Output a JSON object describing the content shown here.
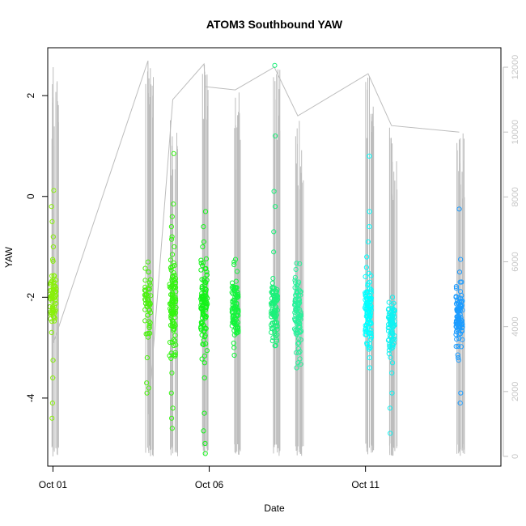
{
  "chart_data": {
    "type": "scatter",
    "title": "ATOM3 Southbound YAW",
    "xlabel": "Date",
    "ylabel": "YAW",
    "xlim": [
      "2023-09-30T20:00",
      "2023-10-15T08:00"
    ],
    "ylim": [
      -5.35,
      2.95
    ],
    "y2lim": [
      -300,
      12600
    ],
    "x_ticks": [
      {
        "value": "2023-10-01T00:00",
        "label": "Oct 01"
      },
      {
        "value": "2023-10-06T00:00",
        "label": "Oct 06"
      },
      {
        "value": "2023-10-11T00:00",
        "label": "Oct 11"
      }
    ],
    "y_ticks": [
      2,
      0,
      -2,
      -4
    ],
    "y2_ticks": [
      0,
      2000,
      4000,
      6000,
      8000,
      10000,
      12000
    ],
    "grid": false,
    "legend": "none",
    "colors": {
      "line": "#bdbdbd",
      "right_axis": "#bfbfbf"
    },
    "series": [
      {
        "time": "2023-10-01T00:00",
        "color": "#88f00a",
        "median": -2.0,
        "spread": 0.28,
        "n": 70,
        "outliers": [
          0.12,
          -0.2,
          -0.5,
          -0.8,
          -1.0,
          -1.25,
          -2.7,
          -3.25,
          -3.6,
          -4.1,
          -4.4
        ]
      },
      {
        "time": "2023-10-04T01:00",
        "color": "#4cf010",
        "median": -2.1,
        "spread": 0.3,
        "n": 50,
        "outliers": [
          -1.3,
          -1.5,
          -3.2,
          -3.7,
          -3.8,
          -3.9
        ]
      },
      {
        "time": "2023-10-04T20:00",
        "color": "#34f410",
        "median": -2.2,
        "spread": 0.45,
        "n": 110,
        "outliers": [
          0.85,
          -0.15,
          -0.4,
          -0.6,
          -0.8,
          -1.0,
          -3.5,
          -3.9,
          -4.2,
          -4.4,
          -4.6
        ]
      },
      {
        "time": "2023-10-05T20:00",
        "color": "#14f218",
        "median": -2.2,
        "spread": 0.4,
        "n": 100,
        "outliers": [
          -0.3,
          -0.6,
          -0.9,
          -1.0,
          -3.3,
          -3.6,
          -4.3,
          -4.65,
          -4.9,
          -5.1
        ]
      },
      {
        "time": "2023-10-06T20:00",
        "color": "#14f43c",
        "median": -2.25,
        "spread": 0.3,
        "n": 90,
        "outliers": [
          -1.25,
          -1.3,
          -3.0
        ]
      },
      {
        "time": "2023-10-08T02:00",
        "color": "#1cf07a",
        "median": -2.2,
        "spread": 0.3,
        "n": 90,
        "outliers": [
          2.6,
          1.2,
          0.1,
          -0.2,
          -0.7,
          -1.1,
          -2.8
        ]
      },
      {
        "time": "2023-10-08T20:00",
        "color": "#28f09a",
        "median": -2.4,
        "spread": 0.4,
        "n": 90,
        "outliers": [
          -1.7,
          -3.1,
          -3.3,
          -3.4
        ]
      },
      {
        "time": "2023-10-11T02:00",
        "color": "#00ffff",
        "median": -2.3,
        "spread": 0.35,
        "n": 100,
        "outliers": [
          0.8,
          -0.3,
          -0.6,
          -0.9,
          -1.2,
          -3.0,
          -3.2,
          -3.4
        ]
      },
      {
        "time": "2023-10-11T20:00",
        "color": "#10f2f2",
        "median": -2.6,
        "spread": 0.28,
        "n": 80,
        "outliers": [
          -2.0,
          -3.3,
          -3.5,
          -3.9,
          -4.2,
          -4.7
        ]
      },
      {
        "time": "2023-10-14T00:00",
        "color": "#1c9cff",
        "median": -2.4,
        "spread": 0.3,
        "n": 90,
        "outliers": [
          -0.25,
          -1.25,
          -1.5,
          -1.7,
          -3.2,
          -3.9,
          -4.1
        ]
      }
    ],
    "line_secondary": {
      "axis": "right",
      "description_points": [
        {
          "time": "2023-10-01T00:00",
          "value": 0
        },
        {
          "time": "2023-10-01T00:10",
          "value": 12000
        },
        {
          "time": "2023-10-01T00:20",
          "value": 3500
        },
        {
          "time": "2023-10-04T01:00",
          "value": 12200
        },
        {
          "time": "2023-10-04T01:10",
          "value": 1300
        },
        {
          "time": "2023-10-04T20:00",
          "value": 11000
        },
        {
          "time": "2023-10-05T20:00",
          "value": 12100
        },
        {
          "time": "2023-10-05T21:00",
          "value": 11400
        },
        {
          "time": "2023-10-06T20:00",
          "value": 11300
        },
        {
          "time": "2023-10-08T02:00",
          "value": 12000
        },
        {
          "time": "2023-10-08T20:00",
          "value": 10500
        },
        {
          "time": "2023-10-11T02:00",
          "value": 11800
        },
        {
          "time": "2023-10-11T20:00",
          "value": 10200
        },
        {
          "time": "2023-10-14T00:00",
          "value": 10000
        }
      ]
    }
  }
}
